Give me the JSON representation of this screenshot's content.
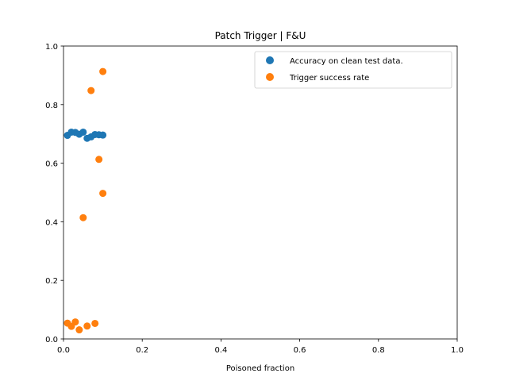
{
  "chart_data": {
    "type": "scatter",
    "title": "Patch Trigger | F&U",
    "xlabel": "Poisoned fraction",
    "ylabel": "",
    "xlim": [
      0,
      1
    ],
    "ylim": [
      0,
      1
    ],
    "xticks": [
      "0.0",
      "0.2",
      "0.4",
      "0.6",
      "0.8",
      "1.0"
    ],
    "yticks": [
      "0.0",
      "0.2",
      "0.4",
      "0.6",
      "0.8",
      "1.0"
    ],
    "grid": false,
    "legend_position": "top-right",
    "series": [
      {
        "name": "Accuracy on clean test data.",
        "color": "#1f77b4",
        "points": [
          [
            0.01,
            0.695
          ],
          [
            0.02,
            0.706
          ],
          [
            0.03,
            0.705
          ],
          [
            0.04,
            0.699
          ],
          [
            0.05,
            0.706
          ],
          [
            0.06,
            0.685
          ],
          [
            0.07,
            0.69
          ],
          [
            0.08,
            0.698
          ],
          [
            0.09,
            0.697
          ],
          [
            0.1,
            0.696
          ]
        ]
      },
      {
        "name": "Trigger success rate",
        "color": "#ff7f0e",
        "points": [
          [
            0.01,
            0.054
          ],
          [
            0.02,
            0.043
          ],
          [
            0.03,
            0.058
          ],
          [
            0.04,
            0.031
          ],
          [
            0.05,
            0.414
          ],
          [
            0.06,
            0.044
          ],
          [
            0.07,
            0.848
          ],
          [
            0.08,
            0.053
          ],
          [
            0.09,
            0.613
          ],
          [
            0.1,
            0.497
          ],
          [
            0.1,
            0.913
          ]
        ]
      }
    ]
  }
}
